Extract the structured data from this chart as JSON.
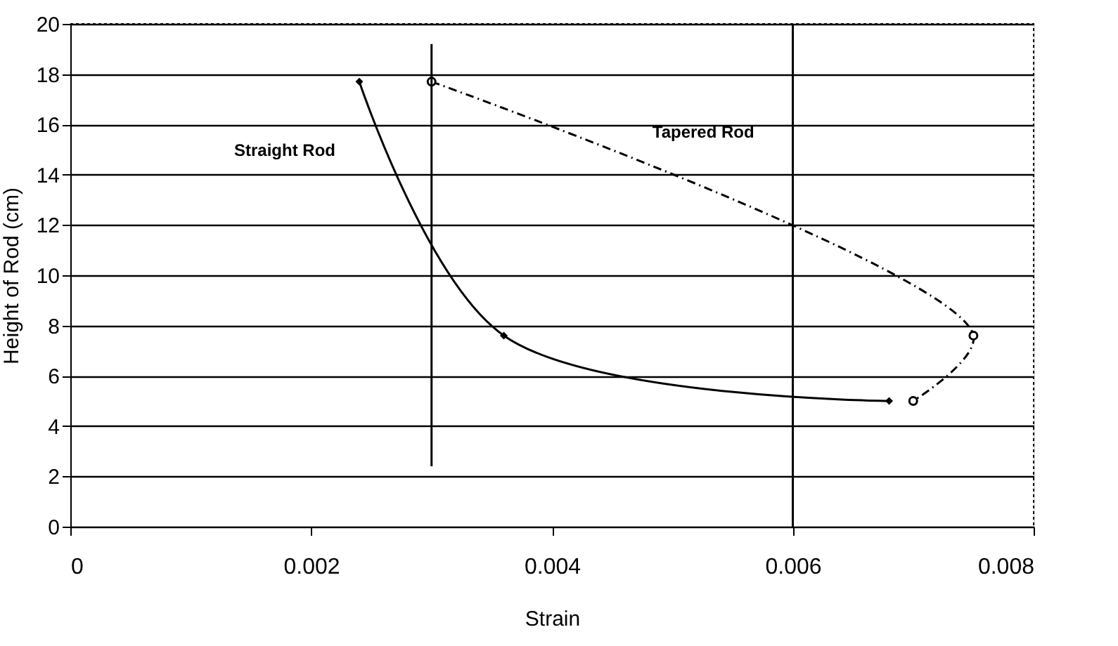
{
  "chart_data": {
    "type": "line",
    "xlabel": "Strain",
    "ylabel": "Height of Rod (cm)",
    "xlim": [
      0,
      0.008
    ],
    "xticks": [
      0,
      0.002,
      0.004,
      0.006,
      0.008
    ],
    "ylim": [
      0,
      20
    ],
    "yticks": [
      0,
      2,
      4,
      6,
      8,
      10,
      12,
      14,
      16,
      18,
      20
    ],
    "grid": "y",
    "series": [
      {
        "name": "Straight Rod",
        "color": "#000000",
        "x": [
          0.0024,
          0.0036,
          0.0068
        ],
        "values": [
          17.7,
          7.6,
          5.0
        ],
        "marker": "diamond",
        "line_style": "solid"
      },
      {
        "name": "Tapered Rod",
        "color": "#000000",
        "x": [
          0.003,
          0.0075,
          0.007
        ],
        "values": [
          17.7,
          7.6,
          5.0
        ],
        "marker": "circle",
        "line_style": "dashed"
      },
      {
        "color": "#000000",
        "x": [
          0.003,
          0.003
        ],
        "values": [
          2.4,
          19.2
        ],
        "marker": "none",
        "line_style": "solid"
      }
    ],
    "ref_lines": [
      {
        "axis": "x",
        "value": 0.006,
        "color": "#000000"
      }
    ]
  }
}
